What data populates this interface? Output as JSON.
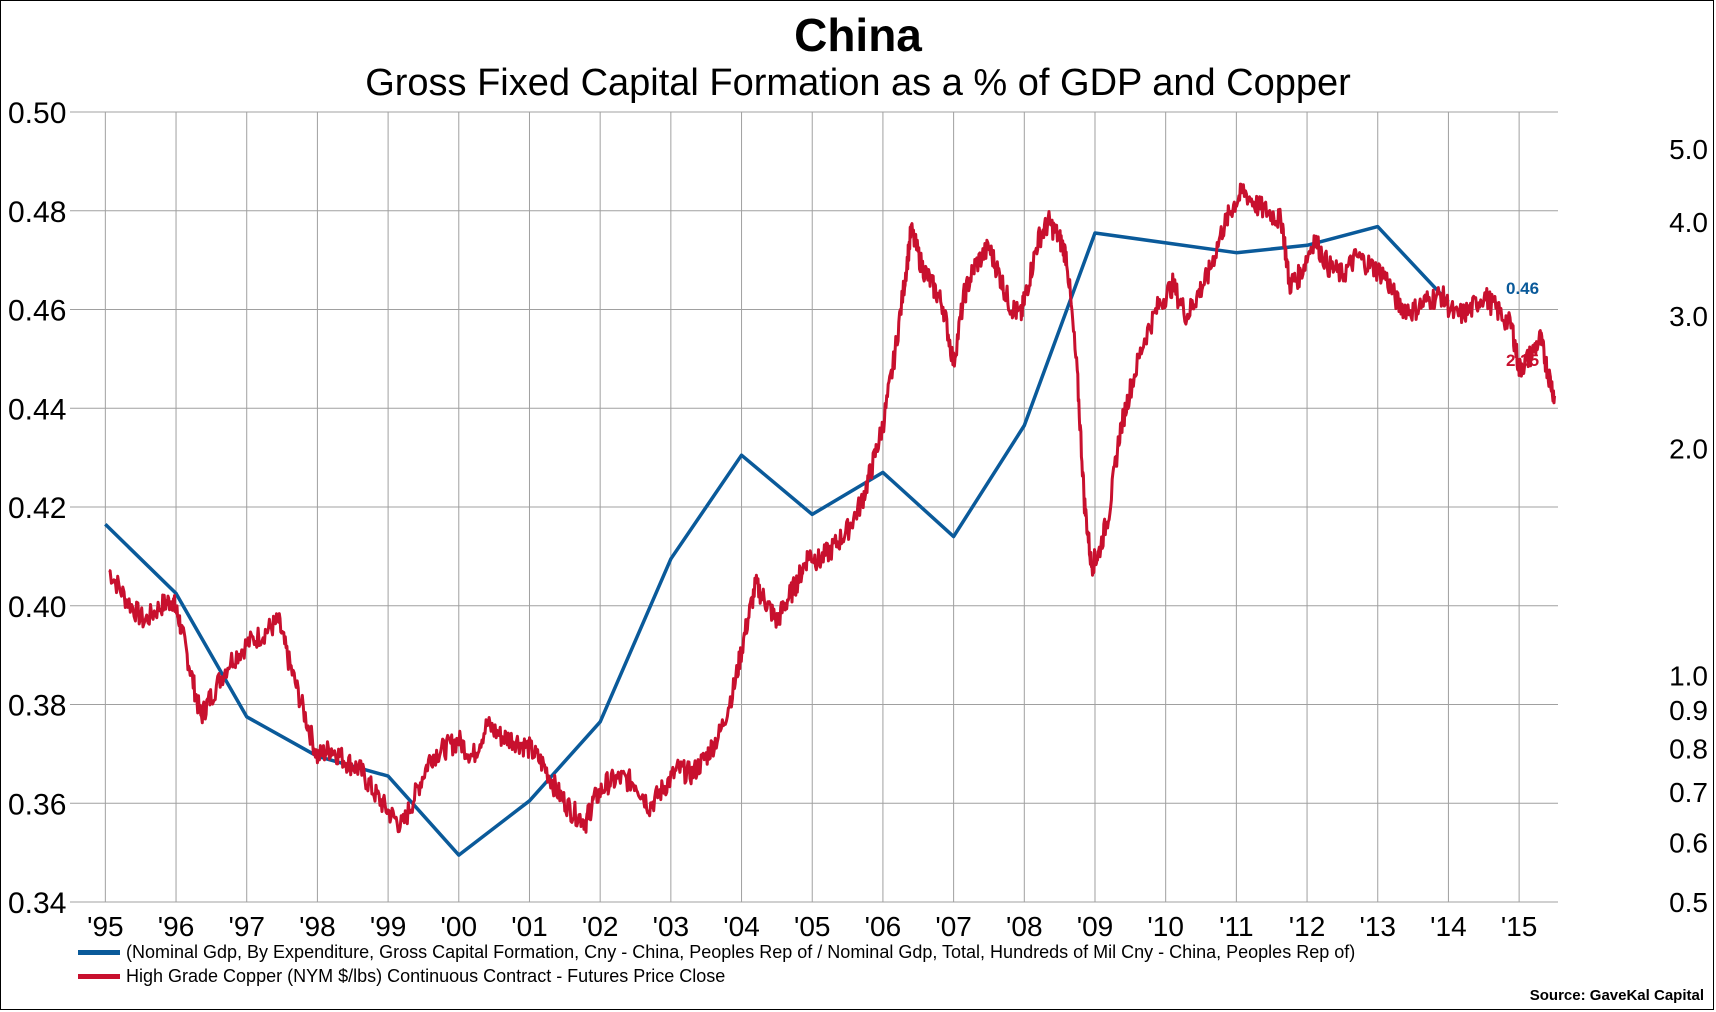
{
  "title": "China",
  "subtitle": "Gross Fixed Capital Formation as a % of GDP and Copper",
  "source": "Source: GaveKal Capital",
  "legend": {
    "gfcf": "(Nominal Gdp, By Expenditure, Gross Capital Formation, Cny - China, Peoples Rep of / Nominal Gdp, Total, Hundreds of Mil Cny - China, Peoples Rep of)",
    "copper": "High Grade Copper (NYM $/lbs) Continuous Contract - Futures Price Close"
  },
  "colors": {
    "gfcf": "#0a5a9a",
    "copper": "#c8102e",
    "grid": "#a0a0a0"
  },
  "chart_data": {
    "type": "line",
    "x_ticks": [
      "'95",
      "'96",
      "'97",
      "'98",
      "'99",
      "'00",
      "'01",
      "'02",
      "'03",
      "'04",
      "'05",
      "'06",
      "'07",
      "'08",
      "'09",
      "'10",
      "'11",
      "'12",
      "'13",
      "'14",
      "'15"
    ],
    "x_range": [
      1994.5,
      2015.55
    ],
    "left_axis": {
      "ylim": [
        0.34,
        0.5
      ],
      "ticks": [
        "0.34",
        "0.36",
        "0.38",
        "0.40",
        "0.42",
        "0.44",
        "0.46",
        "0.48",
        "0.50"
      ]
    },
    "right_axis": {
      "scale": "log",
      "ylim": [
        0.5,
        5.6
      ],
      "ticks": [
        "0.5",
        "0.6",
        "0.7",
        "0.8",
        "0.9",
        "1.0",
        "2.0",
        "3.0",
        "4.0",
        "5.0"
      ]
    },
    "grid": true,
    "series": [
      {
        "name": "(Nominal Gdp, By Expenditure, Gross Capital Formation, Cny - China, Peoples Rep of / Nominal Gdp, Total, Hundreds of Mil Cny - China, Peoples Rep of)",
        "axis": "left",
        "end_label": "0.46",
        "points": [
          [
            1995.0,
            0.4165
          ],
          [
            1996.0,
            0.4025
          ],
          [
            1997.0,
            0.3775
          ],
          [
            1998.0,
            0.3695
          ],
          [
            1999.0,
            0.3655
          ],
          [
            2000.0,
            0.3495
          ],
          [
            2001.0,
            0.3605
          ],
          [
            2002.0,
            0.3765
          ],
          [
            2003.0,
            0.4095
          ],
          [
            2004.0,
            0.4305
          ],
          [
            2005.0,
            0.4185
          ],
          [
            2006.0,
            0.427
          ],
          [
            2007.0,
            0.414
          ],
          [
            2008.0,
            0.4365
          ],
          [
            2009.0,
            0.4755
          ],
          [
            2011.0,
            0.4715
          ],
          [
            2012.0,
            0.473
          ],
          [
            2013.0,
            0.4768
          ],
          [
            2014.0,
            0.4615
          ]
        ]
      },
      {
        "name": "High Grade Copper (NYM $/lbs) Continuous Contract - Futures Price Close",
        "axis": "right",
        "end_label": "2.35",
        "points": [
          [
            1995.05,
            1.38
          ],
          [
            1995.3,
            1.26
          ],
          [
            1995.55,
            1.18
          ],
          [
            1995.8,
            1.24
          ],
          [
            1995.95,
            1.26
          ],
          [
            1996.05,
            1.18
          ],
          [
            1996.2,
            1.02
          ],
          [
            1996.35,
            0.88
          ],
          [
            1996.5,
            0.94
          ],
          [
            1996.75,
            1.04
          ],
          [
            1997.0,
            1.1
          ],
          [
            1997.25,
            1.14
          ],
          [
            1997.45,
            1.18
          ],
          [
            1997.6,
            1.04
          ],
          [
            1997.8,
            0.9
          ],
          [
            1998.0,
            0.78
          ],
          [
            1998.2,
            0.8
          ],
          [
            1998.4,
            0.77
          ],
          [
            1998.6,
            0.75
          ],
          [
            1998.8,
            0.7
          ],
          [
            1999.0,
            0.66
          ],
          [
            1999.2,
            0.63
          ],
          [
            1999.4,
            0.7
          ],
          [
            1999.6,
            0.78
          ],
          [
            1999.8,
            0.8
          ],
          [
            2000.0,
            0.82
          ],
          [
            2000.2,
            0.78
          ],
          [
            2000.4,
            0.86
          ],
          [
            2000.6,
            0.83
          ],
          [
            2000.8,
            0.82
          ],
          [
            2001.0,
            0.8
          ],
          [
            2001.2,
            0.76
          ],
          [
            2001.4,
            0.7
          ],
          [
            2001.6,
            0.66
          ],
          [
            2001.8,
            0.64
          ],
          [
            2001.9,
            0.68
          ],
          [
            2002.1,
            0.72
          ],
          [
            2002.3,
            0.73
          ],
          [
            2002.5,
            0.72
          ],
          [
            2002.7,
            0.67
          ],
          [
            2002.9,
            0.71
          ],
          [
            2003.1,
            0.75
          ],
          [
            2003.3,
            0.74
          ],
          [
            2003.5,
            0.78
          ],
          [
            2003.7,
            0.84
          ],
          [
            2003.9,
            0.97
          ],
          [
            2004.05,
            1.14
          ],
          [
            2004.2,
            1.32
          ],
          [
            2004.35,
            1.25
          ],
          [
            2004.5,
            1.18
          ],
          [
            2004.65,
            1.26
          ],
          [
            2004.8,
            1.34
          ],
          [
            2004.95,
            1.45
          ],
          [
            2005.1,
            1.42
          ],
          [
            2005.3,
            1.48
          ],
          [
            2005.5,
            1.56
          ],
          [
            2005.7,
            1.7
          ],
          [
            2005.85,
            1.9
          ],
          [
            2006.0,
            2.15
          ],
          [
            2006.15,
            2.6
          ],
          [
            2006.3,
            3.3
          ],
          [
            2006.4,
            3.9
          ],
          [
            2006.55,
            3.5
          ],
          [
            2006.7,
            3.3
          ],
          [
            2006.85,
            3.1
          ],
          [
            2007.0,
            2.6
          ],
          [
            2007.15,
            3.2
          ],
          [
            2007.3,
            3.5
          ],
          [
            2007.5,
            3.7
          ],
          [
            2007.65,
            3.4
          ],
          [
            2007.8,
            3.1
          ],
          [
            2007.95,
            3.0
          ],
          [
            2008.05,
            3.3
          ],
          [
            2008.2,
            3.8
          ],
          [
            2008.35,
            4.0
          ],
          [
            2008.5,
            3.8
          ],
          [
            2008.6,
            3.6
          ],
          [
            2008.75,
            2.5
          ],
          [
            2008.85,
            1.7
          ],
          [
            2008.95,
            1.4
          ],
          [
            2009.05,
            1.45
          ],
          [
            2009.2,
            1.65
          ],
          [
            2009.35,
            2.1
          ],
          [
            2009.5,
            2.4
          ],
          [
            2009.7,
            2.8
          ],
          [
            2009.9,
            3.1
          ],
          [
            2010.1,
            3.3
          ],
          [
            2010.3,
            3.0
          ],
          [
            2010.45,
            3.2
          ],
          [
            2010.6,
            3.4
          ],
          [
            2010.8,
            3.9
          ],
          [
            2010.95,
            4.2
          ],
          [
            2011.1,
            4.4
          ],
          [
            2011.3,
            4.2
          ],
          [
            2011.5,
            4.1
          ],
          [
            2011.65,
            4.0
          ],
          [
            2011.75,
            3.3
          ],
          [
            2011.9,
            3.4
          ],
          [
            2012.1,
            3.8
          ],
          [
            2012.3,
            3.5
          ],
          [
            2012.5,
            3.4
          ],
          [
            2012.7,
            3.6
          ],
          [
            2012.9,
            3.5
          ],
          [
            2013.1,
            3.4
          ],
          [
            2013.3,
            3.1
          ],
          [
            2013.5,
            3.05
          ],
          [
            2013.7,
            3.15
          ],
          [
            2013.9,
            3.2
          ],
          [
            2014.1,
            3.0
          ],
          [
            2014.3,
            3.05
          ],
          [
            2014.5,
            3.2
          ],
          [
            2014.7,
            3.05
          ],
          [
            2014.9,
            2.9
          ],
          [
            2015.0,
            2.55
          ],
          [
            2015.15,
            2.65
          ],
          [
            2015.3,
            2.8
          ],
          [
            2015.4,
            2.55
          ],
          [
            2015.5,
            2.35
          ]
        ]
      }
    ]
  }
}
